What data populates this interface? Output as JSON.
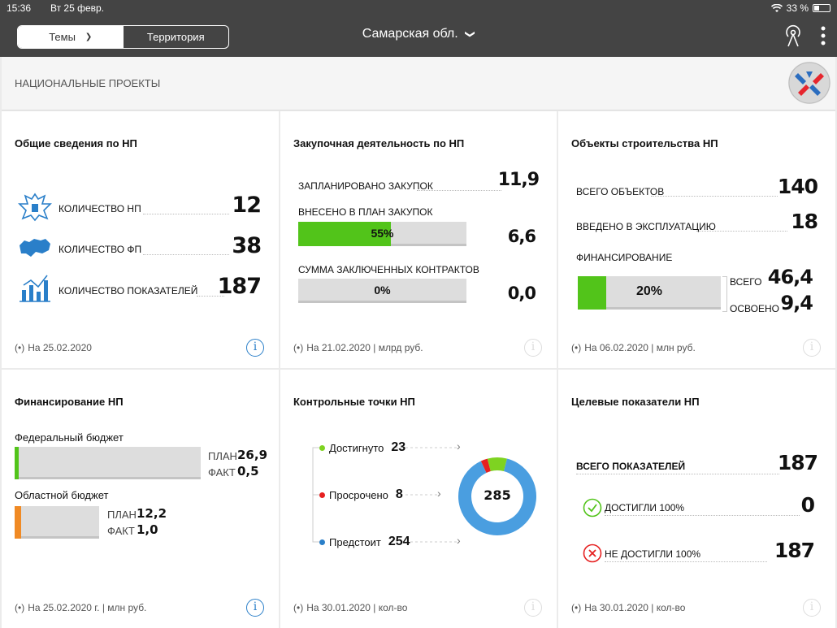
{
  "status": {
    "time": "15:36",
    "date": "Вт 25 февр.",
    "battery": "33 %",
    "battery_level": 0.33
  },
  "nav": {
    "tab_themes": "Темы",
    "tab_territory": "Территория",
    "region": "Самарская обл."
  },
  "subheader": {
    "title": "НАЦИОНАЛЬНЫЕ ПРОЕКТЫ"
  },
  "colors": {
    "green": "#52c41a",
    "orange": "#f08a24",
    "blue_info": "#2a7fc9",
    "donut_blue": "#4a9ee0",
    "red": "#e62020"
  },
  "card1": {
    "title": "Общие сведения по НП",
    "rows": [
      {
        "label": "КОЛИЧЕСТВО НП",
        "value": "12",
        "icon": "emblem-icon"
      },
      {
        "label": "КОЛИЧЕСТВО ФП",
        "value": "38",
        "icon": "map-icon"
      },
      {
        "label": "КОЛИЧЕСТВО ПОКАЗАТЕЛЕЙ",
        "value": "187",
        "icon": "chart-icon"
      }
    ],
    "footer": "На 25.02.2020"
  },
  "card2": {
    "title": "Закупочная деятельность по НП",
    "planned_label": "ЗАПЛАНИРОВАНО ЗАКУПОК",
    "planned_value": "11,9",
    "included_label": "ВНЕСЕНО В ПЛАН ЗАКУПОК",
    "included_pct": "55%",
    "included_fill": 0.55,
    "included_value": "6,6",
    "contracts_label": "СУММА ЗАКЛЮЧЕННЫХ КОНТРАКТОВ",
    "contracts_pct": "0%",
    "contracts_fill": 0,
    "contracts_value": "0,0",
    "footer": "На 21.02.2020 | млрд руб."
  },
  "card3": {
    "title": "Объекты строительства НП",
    "total_label": "ВСЕГО ОБЪЕКТОВ",
    "total_value": "140",
    "commissioned_label": "ВВЕДЕНО В ЭКСПЛУАТАЦИЮ",
    "commissioned_value": "18",
    "funding_label": "ФИНАНСИРОВАНИЕ",
    "funding_pct": "20%",
    "funding_fill": 0.2,
    "all_label": "ВСЕГО",
    "all_value": "46,4",
    "used_label": "ОСВОЕНО",
    "used_value": "9,4",
    "footer": "На 06.02.2020 | млн руб."
  },
  "card4": {
    "title": "Финансирование НП",
    "federal_label": "Федеральный бюджет",
    "federal_fill": 0.02,
    "federal_plan_label": "ПЛАН",
    "federal_plan": "26,9",
    "federal_fact_label": "ФАКТ",
    "federal_fact": "0,5",
    "regional_label": "Областной бюджет",
    "regional_fill": 0.08,
    "regional_plan_label": "ПЛАН",
    "regional_plan": "12,2",
    "regional_fact_label": "ФАКТ",
    "regional_fact": "1,0",
    "footer": "На 25.02.2020 г. | млн руб."
  },
  "card5": {
    "title": "Контрольные точки НП",
    "achieved_label": "Достигнуто",
    "achieved": "23",
    "overdue_label": "Просрочено",
    "overdue": "8",
    "upcoming_label": "Предстоит",
    "upcoming": "254",
    "total": "285",
    "donut": [
      {
        "name": "Предстоит",
        "value": 254,
        "color": "#4a9ee0"
      },
      {
        "name": "Просрочено",
        "value": 8,
        "color": "#e62020"
      },
      {
        "name": "Достигнуто",
        "value": 23,
        "color": "#7ed321"
      }
    ],
    "footer": "На 30.01.2020 | кол-во"
  },
  "card6": {
    "title": "Целевые показатели НП",
    "total_label": "ВСЕГО ПОКАЗАТЕЛЕЙ",
    "total_value": "187",
    "reached_label": "ДОСТИГЛИ 100%",
    "reached_value": "0",
    "not_reached_label": "НЕ ДОСТИГЛИ 100%",
    "not_reached_value": "187",
    "footer": "На 30.01.2020 | кол-во"
  }
}
